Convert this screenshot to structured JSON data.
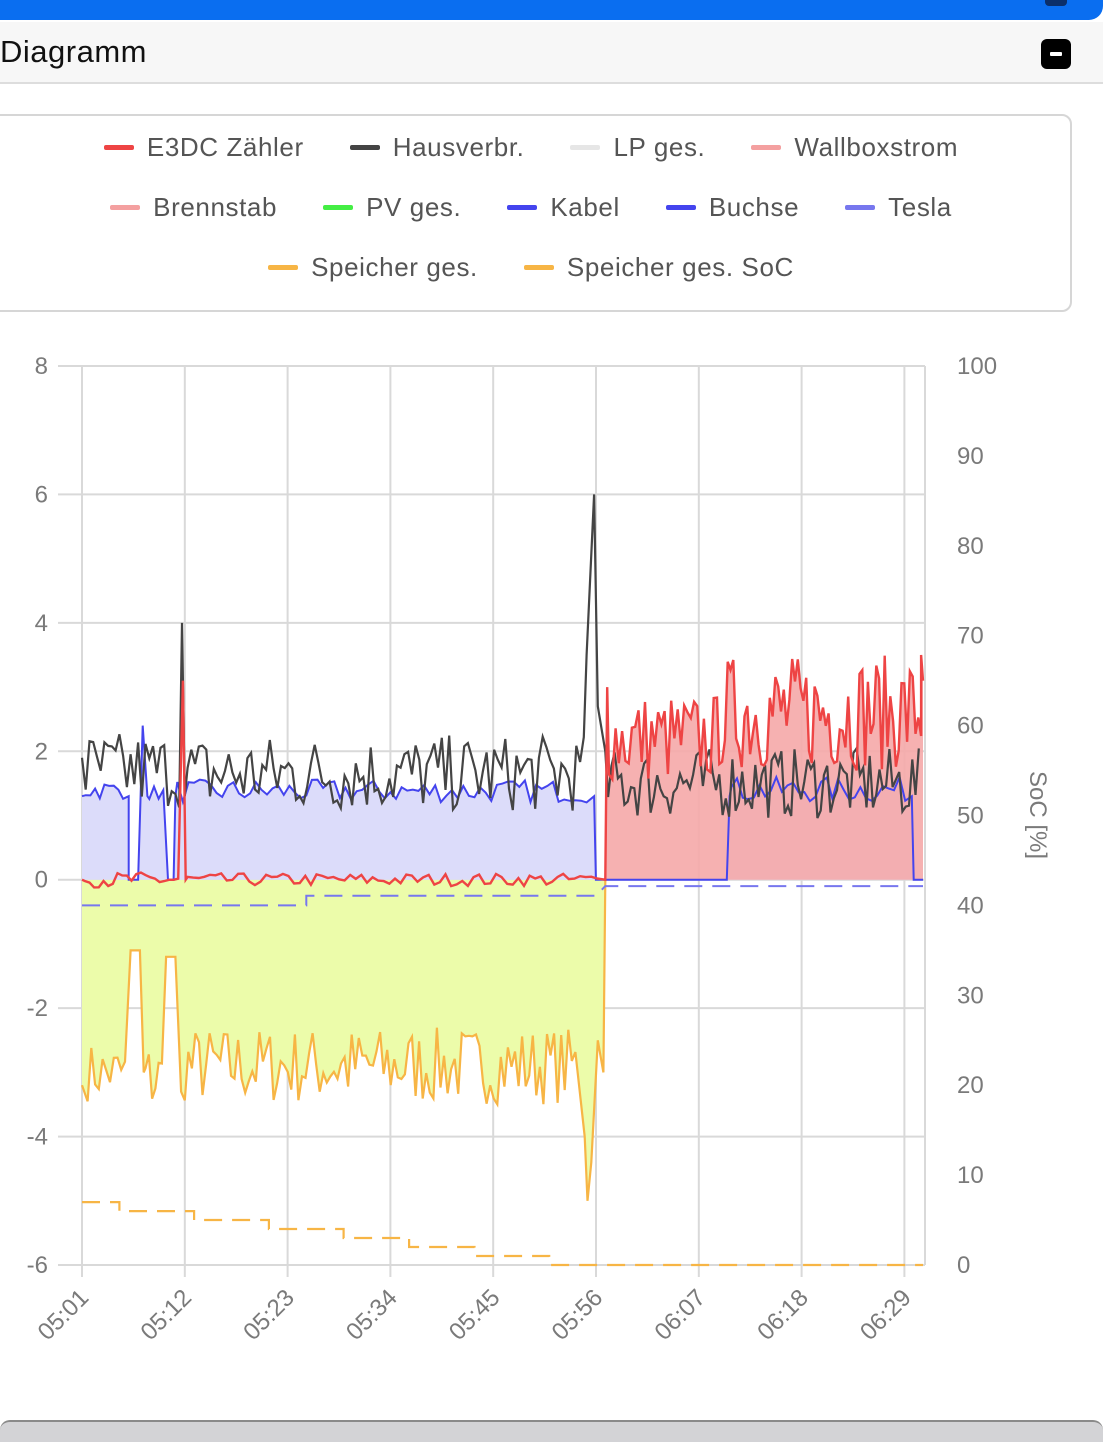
{
  "header": {
    "title": "Diagramm"
  },
  "legend": [
    [
      {
        "label": "E3DC Zähler",
        "color": "#ee4444"
      },
      {
        "label": "Hausverbr.",
        "color": "#444444"
      },
      {
        "label": "LP ges.",
        "color": "#e6e6e6"
      },
      {
        "label": "Wallboxstrom",
        "color": "#f4a0a0"
      }
    ],
    [
      {
        "label": "Brennstab",
        "color": "#f4a0a0"
      },
      {
        "label": "PV ges.",
        "color": "#44ee44"
      },
      {
        "label": "Kabel",
        "color": "#4444ee"
      },
      {
        "label": "Buchse",
        "color": "#4444ee"
      },
      {
        "label": "Tesla",
        "color": "#7777ee"
      }
    ],
    [
      {
        "label": "Speicher ges.",
        "color": "#f7b545"
      },
      {
        "label": "Speicher ges. SoC",
        "color": "#f7b545"
      }
    ]
  ],
  "chart_data": {
    "type": "line",
    "x_labels": [
      "05:01",
      "05:12",
      "05:23",
      "05:34",
      "05:45",
      "05:56",
      "06:07",
      "06:18",
      "06:29"
    ],
    "x_range_minutes": [
      "05:01",
      "06:31"
    ],
    "y_left": {
      "ticks": [
        "8",
        "6",
        "4",
        "2",
        "0",
        "-2",
        "-4",
        "-6"
      ],
      "range": [
        -6,
        8
      ]
    },
    "y_right": {
      "label": "SoC [%]",
      "ticks": [
        "100",
        "90",
        "80",
        "70",
        "60",
        "50",
        "40",
        "30",
        "20",
        "10",
        "0"
      ],
      "range": [
        0,
        100
      ]
    },
    "grid": true,
    "legend_position": "top",
    "series": [
      {
        "name": "E3DC Zähler",
        "axis": "left",
        "fill": "#f5a8a8",
        "approx_values": [
          [
            0,
            0
          ],
          [
            1,
            0
          ],
          [
            10,
            0
          ],
          [
            11,
            3.1
          ],
          [
            12,
            0
          ],
          [
            40,
            0
          ],
          [
            55,
            0
          ],
          [
            56,
            0
          ],
          [
            57,
            3.0
          ],
          [
            62,
            2.5
          ],
          [
            70,
            1.8
          ],
          [
            75,
            1.8
          ],
          [
            76,
            3.2
          ],
          [
            85,
            3.5
          ],
          [
            88,
            3.2
          ],
          [
            90,
            3.0
          ]
        ]
      },
      {
        "name": "Hausverbr.",
        "axis": "left",
        "approx_values": [
          [
            0,
            1.9
          ],
          [
            5,
            2.0
          ],
          [
            11,
            4.0
          ],
          [
            20,
            2.0
          ],
          [
            40,
            2.0
          ],
          [
            54,
            2.8
          ],
          [
            55,
            6.0
          ],
          [
            56,
            0.0
          ],
          [
            60,
            1.7
          ],
          [
            70,
            1.3
          ],
          [
            80,
            1.5
          ],
          [
            90,
            1.8
          ]
        ]
      },
      {
        "name": "Kabel",
        "axis": "left",
        "fill": "#dcdcf8",
        "approx_values": [
          [
            0,
            1.3
          ],
          [
            5,
            1.3
          ],
          [
            5,
            0
          ],
          [
            6,
            0
          ],
          [
            6,
            1.3
          ],
          [
            9,
            1.3
          ],
          [
            9,
            0
          ],
          [
            10,
            0
          ],
          [
            10,
            1.3
          ],
          [
            55,
            1.3
          ],
          [
            55,
            0
          ],
          [
            69,
            0
          ],
          [
            69,
            1.3
          ],
          [
            89,
            1.3
          ],
          [
            89,
            0
          ],
          [
            90,
            0
          ]
        ]
      },
      {
        "name": "Tesla",
        "axis": "left",
        "dashed": true,
        "approx_values": [
          [
            0,
            -0.4
          ],
          [
            24,
            -0.4
          ],
          [
            24,
            -0.25
          ],
          [
            55,
            -0.25
          ],
          [
            56,
            -0.1
          ],
          [
            90,
            -0.1
          ]
        ]
      },
      {
        "name": "PV ges.",
        "axis": "left",
        "fill": "#ecfcaa",
        "approx_values": [
          [
            0,
            0
          ],
          [
            56,
            0
          ]
        ]
      },
      {
        "name": "Speicher ges.",
        "axis": "left",
        "approx_values": [
          [
            0,
            -3.2
          ],
          [
            5,
            -2.8
          ],
          [
            6,
            -1.1
          ],
          [
            7,
            -3.2
          ],
          [
            9,
            -1.2
          ],
          [
            11,
            -3.4
          ],
          [
            20,
            -2.8
          ],
          [
            40,
            -3.0
          ],
          [
            54,
            -5.0
          ],
          [
            55,
            -3.0
          ],
          [
            56,
            0
          ]
        ]
      },
      {
        "name": "Speicher ges. SoC",
        "axis": "right",
        "dashed": true,
        "approx_values": [
          [
            0,
            7
          ],
          [
            4,
            7
          ],
          [
            4,
            6
          ],
          [
            12,
            6
          ],
          [
            12,
            5
          ],
          [
            20,
            5
          ],
          [
            20,
            4
          ],
          [
            28,
            4
          ],
          [
            28,
            3
          ],
          [
            35,
            3
          ],
          [
            35,
            2
          ],
          [
            42,
            2
          ],
          [
            42,
            1
          ],
          [
            50,
            1
          ],
          [
            50,
            0
          ],
          [
            90,
            0
          ]
        ]
      }
    ]
  }
}
